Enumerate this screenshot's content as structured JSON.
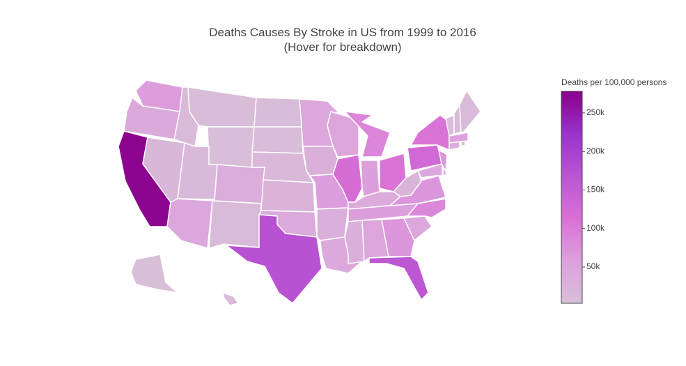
{
  "chart_data": {
    "type": "choropleth",
    "title": "Deaths Causes By Stroke in US from 1999 to 2016",
    "subtitle": "(Hover for breakdown)",
    "colorbar_title": "Deaths per 100,000 persons",
    "values": [
      62000,
      40000,
      275000,
      18000,
      12000,
      8000,
      4000,
      14000,
      35000,
      45000,
      12000,
      7000,
      8000,
      15000,
      25000,
      38000,
      172000,
      45000,
      30000,
      60000,
      32000,
      42000,
      50000,
      120000,
      88000,
      58000,
      110000,
      38000,
      60000,
      30000,
      50000,
      70000,
      165000,
      45000,
      85000,
      70000,
      20000,
      130000,
      110000,
      45000,
      7000,
      70000,
      30000,
      9000,
      55000,
      5000,
      10000,
      12000,
      3500,
      12000
    ],
    "colorscale": [
      "#d8bfd8",
      "#dda0dd",
      "#da70d6",
      "#ba55d3",
      "#9932cc",
      "#8b008b"
    ],
    "zlim": [
      3000,
      278000
    ],
    "zticks": [
      {
        "value": 50000,
        "label": "50k"
      },
      {
        "value": 100000,
        "label": "100k"
      },
      {
        "value": 150000,
        "label": "150k"
      },
      {
        "value": 200000,
        "label": "200k"
      },
      {
        "value": 250000,
        "label": "250k"
      }
    ]
  }
}
